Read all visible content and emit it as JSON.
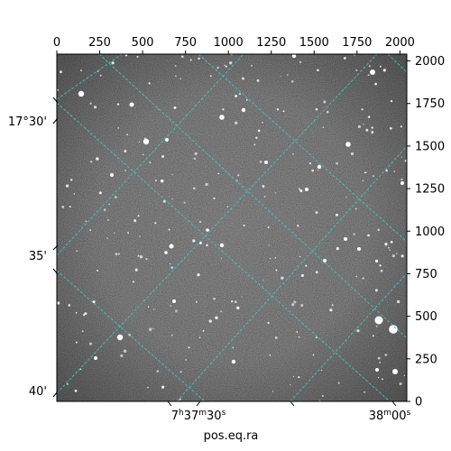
{
  "chart_data": {
    "type": "image",
    "xlabel": "pos.eq.ra",
    "pixel_axis_x": {
      "range": [
        0,
        2040
      ],
      "ticks": [
        0,
        250,
        500,
        750,
        1000,
        1250,
        1500,
        1750,
        2000
      ],
      "labels": [
        "0",
        "250",
        "500",
        "750",
        "1000",
        "1250",
        "1500",
        "1750",
        "2000"
      ]
    },
    "pixel_axis_y": {
      "range": [
        0,
        2040
      ],
      "ticks": [
        0,
        250,
        500,
        750,
        1000,
        1250,
        1500,
        1750,
        2000
      ],
      "labels": [
        "0",
        "250",
        "500",
        "750",
        "1000",
        "1250",
        "1500",
        "1750",
        "2000"
      ]
    },
    "dec_labels": [
      {
        "text": "17°30'"
      },
      {
        "text": "35'"
      },
      {
        "text": "40'"
      }
    ],
    "ra_labels": [
      {
        "text": "7h37m30s"
      },
      {
        "text": "38m00s"
      }
    ],
    "grid_color": "#3cc8c8",
    "image_style": "grayscale star field with dark vignette in corners"
  }
}
